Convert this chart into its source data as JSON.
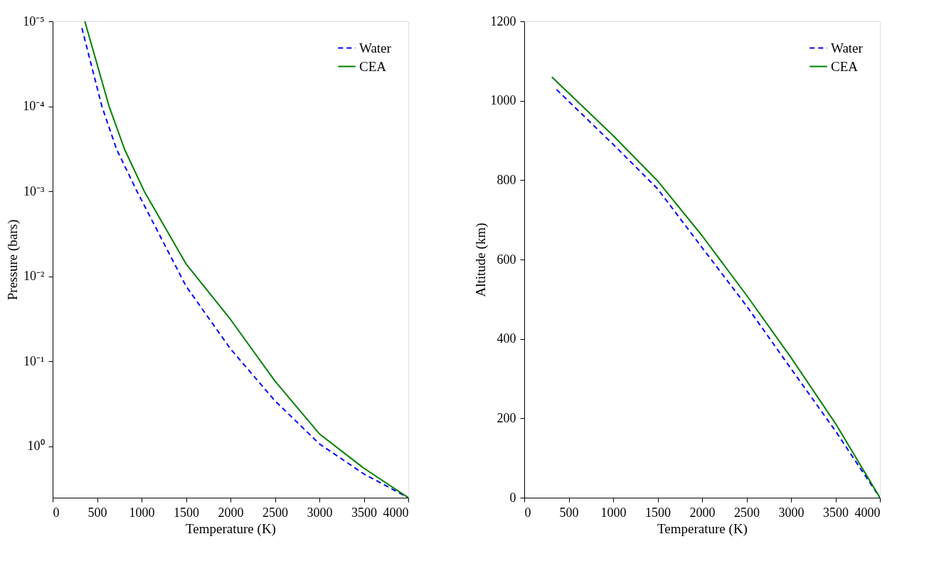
{
  "chart_data": [
    {
      "type": "line",
      "xlabel": "Temperature (K)",
      "ylabel": "Pressure (bars)",
      "log": "y",
      "legend": "top right",
      "grid": false,
      "xlim": [
        0,
        4000
      ],
      "xticks": [
        0,
        500,
        1000,
        1500,
        2000,
        2500,
        3000,
        3500,
        4000
      ],
      "ylim": [
        4,
        1e-05
      ],
      "yticks": [
        {
          "value": 1e-05,
          "label": "10⁻⁵"
        },
        {
          "value": 0.0001,
          "label": "10⁻⁴"
        },
        {
          "value": 0.001,
          "label": "10⁻³"
        },
        {
          "value": 0.01,
          "label": "10⁻²"
        },
        {
          "value": 0.1,
          "label": "10⁻¹"
        },
        {
          "value": 1,
          "label": "10⁰"
        }
      ],
      "series": [
        {
          "name": "Water",
          "color": "#0000ff",
          "line_style": "dashed",
          "x": [
            329,
            554,
            719,
            949,
            1500,
            2000,
            2500,
            3000,
            3500,
            4000
          ],
          "values": [
            1.2e-05,
            0.0001,
            0.00032,
            0.001,
            0.013,
            0.071,
            0.29,
            0.93,
            2.1,
            4
          ]
        },
        {
          "name": "CEA",
          "color": "#008000",
          "line_style": "solid",
          "x": [
            362,
            635,
            809,
            1031,
            1500,
            2000,
            2500,
            3000,
            3500,
            4000
          ],
          "values": [
            1e-05,
            0.0001,
            0.00032,
            0.001,
            0.0071,
            0.032,
            0.17,
            0.71,
            1.8,
            4
          ]
        }
      ]
    },
    {
      "type": "line",
      "xlabel": "Temperature (K)",
      "ylabel": "Altitude (km)",
      "legend": "top right",
      "grid": false,
      "xlim": [
        0,
        4000
      ],
      "xticks": [
        0,
        500,
        1000,
        1500,
        2000,
        2500,
        3000,
        3500,
        4000
      ],
      "ylim": [
        0,
        1200
      ],
      "yticks": [
        0,
        200,
        400,
        600,
        800,
        1000,
        1200
      ],
      "series": [
        {
          "name": "Water",
          "color": "#0000ff",
          "line_style": "dashed",
          "x": [
            364,
            1000,
            1500,
            2000,
            2500,
            3000,
            3500,
            4000
          ],
          "values": [
            1028,
            890,
            778,
            630,
            483,
            325,
            168,
            0
          ]
        },
        {
          "name": "CEA",
          "color": "#008000",
          "line_style": "solid",
          "x": [
            310,
            1000,
            1500,
            2000,
            2500,
            3000,
            3500,
            4000
          ],
          "values": [
            1060,
            912,
            798,
            660,
            510,
            353,
            187,
            0
          ]
        }
      ]
    }
  ]
}
